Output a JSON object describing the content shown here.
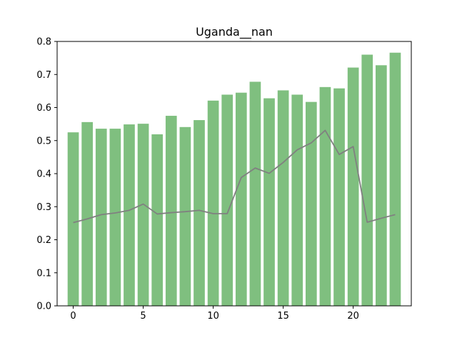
{
  "chart_data": {
    "type": "bar",
    "title": "Uganda__nan",
    "xlabel": "",
    "ylabel": "",
    "x": [
      0,
      1,
      2,
      3,
      4,
      5,
      6,
      7,
      8,
      9,
      10,
      11,
      12,
      13,
      14,
      15,
      16,
      17,
      18,
      19,
      20,
      21,
      22,
      23
    ],
    "series": [
      {
        "type": "bar",
        "color": "#7fbf7f",
        "values": [
          0.525,
          0.556,
          0.536,
          0.536,
          0.549,
          0.551,
          0.519,
          0.575,
          0.541,
          0.562,
          0.621,
          0.639,
          0.645,
          0.678,
          0.628,
          0.652,
          0.639,
          0.617,
          0.662,
          0.658,
          0.721,
          0.76,
          0.728,
          0.766
        ]
      },
      {
        "type": "line",
        "color": "#808080",
        "values": [
          0.252,
          0.263,
          0.276,
          0.281,
          0.289,
          0.308,
          0.278,
          0.282,
          0.285,
          0.289,
          0.279,
          0.279,
          0.388,
          0.417,
          0.401,
          0.434,
          0.472,
          0.493,
          0.531,
          0.458,
          0.482,
          0.253,
          0.265,
          0.276
        ]
      }
    ],
    "xlim": [
      -1.15,
      24.15
    ],
    "ylim": [
      0,
      0.8
    ],
    "xticks": [
      0,
      5,
      10,
      15,
      20
    ],
    "xtick_labels": [
      "0",
      "5",
      "10",
      "15",
      "20"
    ],
    "yticks": [
      0.0,
      0.1,
      0.2,
      0.3,
      0.4,
      0.5,
      0.6,
      0.7,
      0.8
    ],
    "ytick_labels": [
      "0.0",
      "0.1",
      "0.2",
      "0.3",
      "0.4",
      "0.5",
      "0.6",
      "0.7",
      "0.8"
    ],
    "grid": false,
    "legend": "none"
  }
}
